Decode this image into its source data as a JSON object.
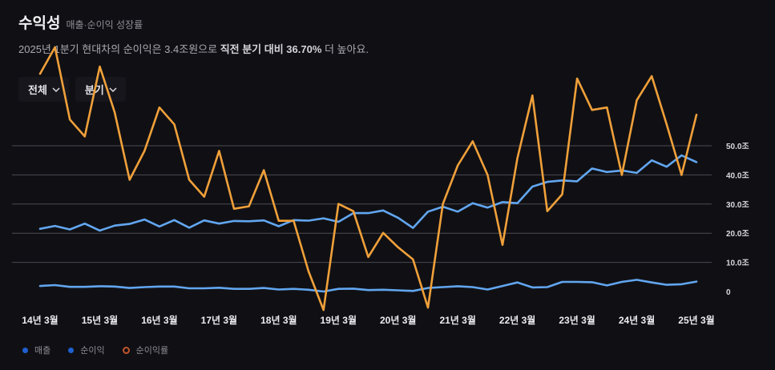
{
  "header": {
    "title": "수익성",
    "subtitle": "매출·순이익 성장률",
    "summary_prefix": "2025년 1분기 현대차의 순이익은 3.4조원으로 ",
    "summary_highlight": "직전 분기 대비 36.70%",
    "summary_suffix": " 더 높아요."
  },
  "filters": {
    "scope_label": "전체",
    "period_label": "분기"
  },
  "chart_data": {
    "type": "line",
    "x_tick_labels": [
      "14년 3월",
      "15년 3월",
      "16년 3월",
      "17년 3월",
      "18년 3월",
      "19년 3월",
      "20년 3월",
      "21년 3월",
      "22년 3월",
      "23년 3월",
      "24년 3월",
      "25년 3월"
    ],
    "y_tick_labels": [
      "50.0조",
      "40.0조",
      "30.0조",
      "20.0조",
      "10.0조",
      "0"
    ],
    "ylim": [
      0,
      50
    ],
    "grid": true,
    "legend_position": "bottom-left",
    "series": [
      {
        "name": "매출",
        "color": "#62a6f0",
        "marker_color": "#1f5fd0",
        "values": [
          21.5,
          22.5,
          21.3,
          23.3,
          20.9,
          22.6,
          23.2,
          24.7,
          22.3,
          24.5,
          21.9,
          24.4,
          23.3,
          24.2,
          24.1,
          24.4,
          22.4,
          24.5,
          24.3,
          25.1,
          23.9,
          26.9,
          26.9,
          27.8,
          25.3,
          21.8,
          27.4,
          29.1,
          27.4,
          30.3,
          28.8,
          30.7,
          30.3,
          36.0,
          37.6,
          38.1,
          37.8,
          42.2,
          41.0,
          41.5,
          40.7,
          45.0,
          42.8,
          46.7,
          44.4
        ],
        "style": "solid"
      },
      {
        "name": "순이익",
        "color": "#62a6f0",
        "marker_color": "#1f5fd0",
        "values": [
          1.9,
          2.2,
          1.6,
          1.6,
          1.8,
          1.7,
          1.2,
          1.5,
          1.7,
          1.7,
          1.1,
          1.1,
          1.3,
          0.9,
          0.9,
          1.2,
          0.7,
          0.9,
          0.6,
          0.0,
          0.9,
          1.0,
          0.5,
          0.6,
          0.4,
          0.2,
          1.2,
          1.5,
          1.8,
          1.5,
          0.7,
          1.9,
          3.1,
          1.4,
          1.5,
          3.3,
          3.3,
          3.2,
          2.1,
          3.3,
          4.0,
          3.1,
          2.3,
          2.5,
          3.4
        ],
        "style": "solid"
      },
      {
        "name": "순이익률",
        "color": "#f0a03a",
        "marker_color": "#c2552a",
        "values": [
          9.0,
          10.1,
          7.1,
          6.4,
          9.3,
          7.4,
          4.6,
          5.8,
          7.6,
          6.9,
          4.6,
          3.9,
          5.8,
          3.4,
          3.5,
          5.0,
          2.9,
          2.9,
          0.8,
          -0.8,
          3.6,
          3.3,
          1.4,
          2.4,
          1.8,
          1.3,
          -0.7,
          3.6,
          5.2,
          6.2,
          4.8,
          1.9,
          5.5,
          8.1,
          3.3,
          4.0,
          8.8,
          7.5,
          7.6,
          4.8,
          7.9,
          8.9,
          6.9,
          4.8,
          7.3
        ],
        "style": "solid",
        "axis_note": "plotted on a separate hidden axis"
      }
    ]
  }
}
